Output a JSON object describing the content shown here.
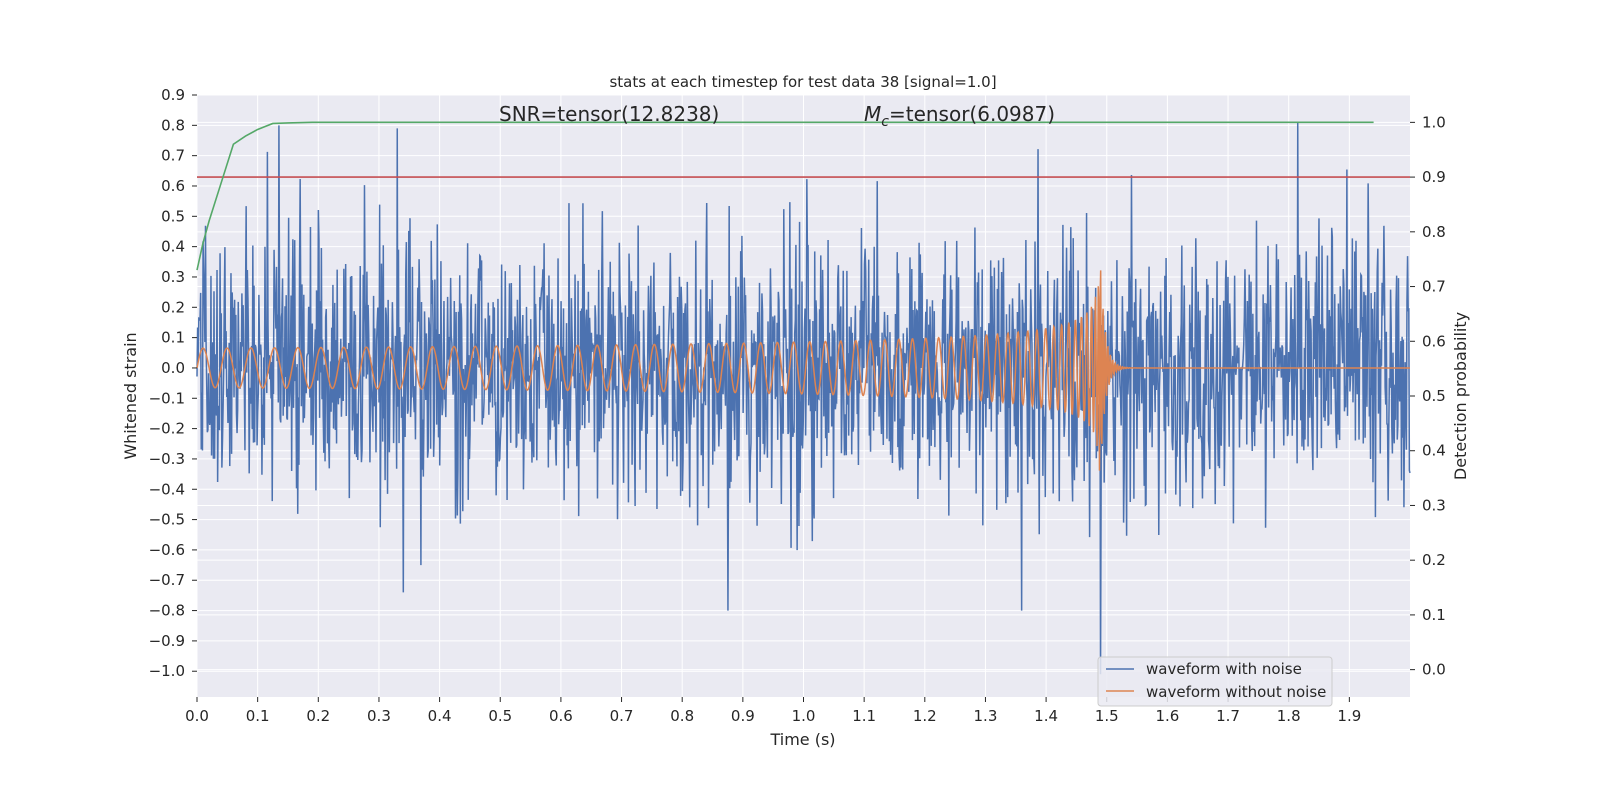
{
  "chart_data": {
    "type": "line",
    "title": "stats at each timestep for test data 38 [signal=1.0]",
    "xlabel": "Time (s)",
    "ylabel": "Whitened strain",
    "y2label": "Detection probability",
    "xlim": [
      0.0,
      2.0
    ],
    "ylim": [
      -1.085,
      0.9
    ],
    "y2lim": [
      -0.05,
      1.05
    ],
    "xticks": [
      "0.0",
      "0.1",
      "0.2",
      "0.3",
      "0.4",
      "0.5",
      "0.6",
      "0.7",
      "0.8",
      "0.9",
      "1.0",
      "1.1",
      "1.2",
      "1.3",
      "1.4",
      "1.5",
      "1.6",
      "1.7",
      "1.8",
      "1.9"
    ],
    "yticks": [
      "0.9",
      "0.8",
      "0.7",
      "0.6",
      "0.5",
      "0.4",
      "0.3",
      "0.2",
      "0.1",
      "0.0",
      "−0.1",
      "−0.2",
      "−0.3",
      "−0.4",
      "−0.5",
      "−0.6",
      "−0.7",
      "−0.8",
      "−0.9",
      "−1.0"
    ],
    "y2ticks": [
      "1.0",
      "0.9",
      "0.8",
      "0.7",
      "0.6",
      "0.5",
      "0.4",
      "0.3",
      "0.2",
      "0.1",
      "0.0"
    ],
    "grid": true,
    "legend_position": "lower-right",
    "annotations": {
      "snr": "SNR=tensor(12.8238)",
      "mc_symbol": "M",
      "mc_sub": "c",
      "mc_value": "=tensor(6.0987)"
    },
    "series": [
      {
        "name": "waveform with noise",
        "axis": "left",
        "color": "#4c72b0",
        "description_kind": "noise",
        "amplitude_std": 0.25,
        "notable_points": [
          [
            0.135,
            0.8
          ],
          [
            0.33,
            0.79
          ],
          [
            0.34,
            -0.74
          ],
          [
            0.875,
            -0.8
          ],
          [
            1.36,
            -0.8
          ],
          [
            1.49,
            -1.01
          ],
          [
            1.815,
            0.81
          ]
        ]
      },
      {
        "name": "waveform without noise",
        "axis": "left",
        "color": "#dd8452",
        "chirp": {
          "start": 0.0,
          "merger": 1.49,
          "ringdown_end": 1.55,
          "amp_start": 0.065,
          "amp_peak": 0.4,
          "amp_trough": -0.34
        }
      },
      {
        "name": "",
        "axis": "right",
        "color": "#55a868",
        "x": [
          0.0,
          0.01,
          0.02,
          0.04,
          0.06,
          0.08,
          0.1,
          0.125,
          0.15,
          0.19,
          0.25,
          0.5,
          1.0,
          1.5,
          1.94
        ],
        "y": [
          0.73,
          0.78,
          0.82,
          0.89,
          0.96,
          0.975,
          0.987,
          0.998,
          0.999,
          1.0,
          1.0,
          1.0,
          1.0,
          1.0,
          1.0
        ]
      },
      {
        "name": "",
        "axis": "right",
        "color": "#c44e52",
        "x": [
          0.0,
          2.0
        ],
        "y": [
          0.9,
          0.9
        ]
      }
    ]
  }
}
